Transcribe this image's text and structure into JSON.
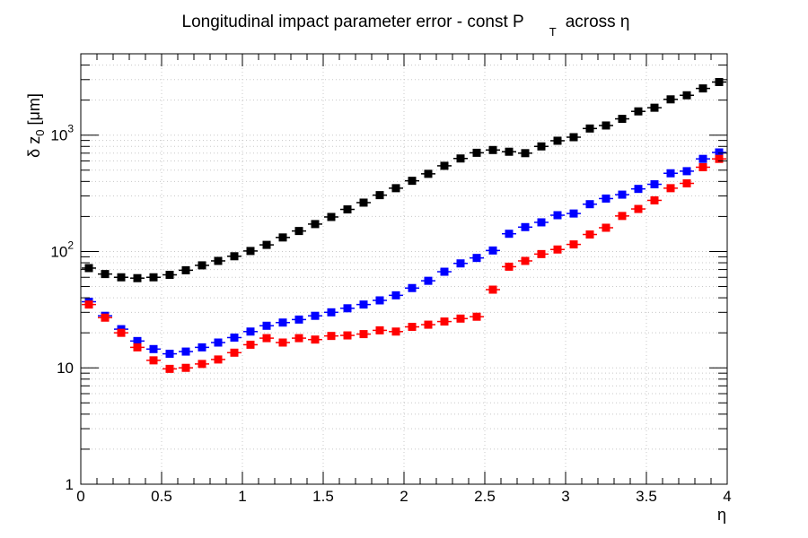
{
  "chart_data": {
    "type": "scatter",
    "title": {
      "main": "Longitudinal impact parameter error - const P",
      "sub": "T",
      "tail": "across  η"
    },
    "xlabel": "η",
    "ylabel": {
      "prefix": "δ z",
      "sub": "0",
      "suffix": " [μm]"
    },
    "xlim": [
      0,
      4
    ],
    "ylim": [
      1,
      5000
    ],
    "yscale": "log",
    "grid": true,
    "x_tick_labels": [
      {
        "value": 0,
        "label": "0"
      },
      {
        "value": 0.5,
        "label": "0.5"
      },
      {
        "value": 1,
        "label": "1"
      },
      {
        "value": 1.5,
        "label": "1.5"
      },
      {
        "value": 2,
        "label": "2"
      },
      {
        "value": 2.5,
        "label": "2.5"
      },
      {
        "value": 3,
        "label": "3"
      },
      {
        "value": 3.5,
        "label": "3.5"
      },
      {
        "value": 4,
        "label": "4"
      }
    ],
    "y_tick_labels": [
      {
        "value": 1,
        "base": "1",
        "exp": ""
      },
      {
        "value": 10,
        "base": "10",
        "exp": ""
      },
      {
        "value": 100,
        "base": "10",
        "exp": "2"
      },
      {
        "value": 1000,
        "base": "10",
        "exp": "3"
      }
    ],
    "bin_width": 0.1,
    "x": [
      0.05,
      0.15,
      0.25,
      0.35,
      0.45,
      0.55,
      0.65,
      0.75,
      0.85,
      0.95,
      1.05,
      1.15,
      1.25,
      1.35,
      1.45,
      1.55,
      1.65,
      1.75,
      1.85,
      1.95,
      2.05,
      2.15,
      2.25,
      2.35,
      2.45,
      2.55,
      2.65,
      2.75,
      2.85,
      2.95,
      3.05,
      3.15,
      3.25,
      3.35,
      3.45,
      3.55,
      3.65,
      3.75,
      3.85,
      3.95
    ],
    "series": [
      {
        "name": "black",
        "color": "#000000",
        "values": [
          72,
          64,
          60,
          59,
          60,
          63,
          69,
          76,
          83,
          91,
          101,
          114,
          132,
          150,
          172,
          198,
          230,
          263,
          305,
          350,
          405,
          465,
          545,
          630,
          705,
          745,
          720,
          700,
          800,
          895,
          960,
          1140,
          1210,
          1380,
          1600,
          1720,
          2030,
          2200,
          2520,
          2860
        ]
      },
      {
        "name": "blue",
        "color": "#0000ff",
        "values": [
          37,
          28,
          21.5,
          17,
          14.5,
          13.2,
          13.8,
          15,
          16.5,
          18.2,
          20.5,
          23,
          24.5,
          26,
          28,
          30,
          32.5,
          35,
          38,
          42,
          48.5,
          56,
          67,
          79,
          88,
          102,
          142,
          162,
          178,
          205,
          212,
          255,
          285,
          308,
          345,
          378,
          470,
          490,
          625,
          710
        ]
      },
      {
        "name": "red",
        "color": "#ff0000",
        "values": [
          35,
          27,
          20,
          15,
          11.6,
          9.8,
          10,
          10.8,
          11.8,
          13.5,
          15.8,
          18,
          16.5,
          18,
          17.5,
          18.8,
          19,
          19.5,
          21,
          20.5,
          22.5,
          23.5,
          25,
          26.5,
          27.5,
          47,
          74,
          83,
          95,
          104,
          115,
          140,
          160,
          202,
          232,
          275,
          350,
          385,
          530,
          625
        ]
      }
    ]
  }
}
